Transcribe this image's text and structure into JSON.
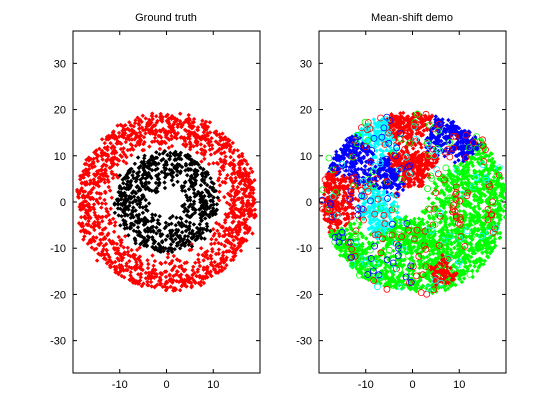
{
  "chart_data": [
    {
      "type": "scatter",
      "title": "Ground truth",
      "xlabel": "",
      "ylabel": "",
      "xlim": [
        -20,
        20
      ],
      "ylim": [
        -37,
        37
      ],
      "xticks": [
        -10,
        0,
        10
      ],
      "yticks": [
        -30,
        -20,
        -10,
        0,
        10,
        20,
        30
      ],
      "grid": false,
      "legend": "none",
      "series": [
        {
          "shape": "ring",
          "center": [
            0,
            0
          ],
          "radius_range": [
            11,
            19
          ],
          "count": 1400,
          "marker": "diamond",
          "color": "#ff0000"
        },
        {
          "shape": "ring",
          "center": [
            0,
            0
          ],
          "radius_range": [
            3,
            11
          ],
          "count": 700,
          "marker": "diamond",
          "color": "#000000"
        }
      ]
    },
    {
      "type": "scatter",
      "title": "Mean-shift demo",
      "xlabel": "",
      "ylabel": "",
      "xlim": [
        -20,
        20
      ],
      "ylim": [
        -37,
        37
      ],
      "xticks": [
        -10,
        0,
        10
      ],
      "yticks": [
        -30,
        -20,
        -10,
        0,
        10,
        20,
        30
      ],
      "grid": false,
      "legend": "none",
      "series": [
        {
          "shape": "sector",
          "angle_range": [
            -80,
            40
          ],
          "radius_range": [
            3,
            20
          ],
          "count": 1100,
          "marker": "diamond",
          "color": "#00ff00"
        },
        {
          "shape": "sector",
          "angle_range": [
            40,
            78
          ],
          "radius_range": [
            11,
            19
          ],
          "count": 260,
          "marker": "diamond",
          "color": "#0000ff"
        },
        {
          "shape": "sector",
          "angle_range": [
            78,
            108
          ],
          "radius_range": [
            11,
            19
          ],
          "count": 220,
          "marker": "diamond",
          "color": "#ff0000"
        },
        {
          "shape": "sector",
          "angle_range": [
            108,
            130
          ],
          "radius_range": [
            11,
            19
          ],
          "count": 180,
          "marker": "diamond",
          "color": "#00ffff"
        },
        {
          "shape": "sector",
          "angle_range": [
            130,
            160
          ],
          "radius_range": [
            11,
            19
          ],
          "count": 200,
          "marker": "diamond",
          "color": "#0000ff"
        },
        {
          "shape": "sector",
          "angle_range": [
            160,
            200
          ],
          "radius_range": [
            11,
            19
          ],
          "count": 260,
          "marker": "diamond",
          "color": "#ff0000"
        },
        {
          "shape": "sector",
          "angle_range": [
            200,
            280
          ],
          "radius_range": [
            11,
            19
          ],
          "count": 450,
          "marker": "diamond",
          "color": "#00ff00"
        },
        {
          "shape": "sector",
          "angle_range": [
            60,
            120
          ],
          "radius_range": [
            3,
            11
          ],
          "count": 300,
          "marker": "diamond",
          "color": "#ff0000"
        },
        {
          "shape": "sector",
          "angle_range": [
            120,
            160
          ],
          "radius_range": [
            3,
            11
          ],
          "count": 150,
          "marker": "diamond",
          "color": "#0000ff"
        },
        {
          "shape": "sector",
          "angle_range": [
            160,
            230
          ],
          "radius_range": [
            3,
            11
          ],
          "count": 220,
          "marker": "diamond",
          "color": "#00ffff"
        },
        {
          "shape": "sector",
          "angle_range": [
            230,
            300
          ],
          "radius_range": [
            3,
            11
          ],
          "count": 220,
          "marker": "diamond",
          "color": "#00ff00"
        },
        {
          "shape": "sector",
          "angle_range": [
            285,
            300
          ],
          "radius_range": [
            13,
            19
          ],
          "count": 70,
          "marker": "diamond",
          "color": "#ff0000"
        },
        {
          "shape": "sector",
          "angle_range": [
            0,
            360
          ],
          "radius_range": [
            2,
            20
          ],
          "count": 140,
          "marker": "circle",
          "color": "#ff0000"
        },
        {
          "shape": "sector",
          "angle_range": [
            0,
            360
          ],
          "radius_range": [
            2,
            20
          ],
          "count": 70,
          "marker": "circle",
          "color": "#00ff00"
        },
        {
          "shape": "sector",
          "angle_range": [
            90,
            270
          ],
          "radius_range": [
            2,
            20
          ],
          "count": 60,
          "marker": "circle",
          "color": "#0000ff"
        },
        {
          "shape": "sector",
          "angle_range": [
            0,
            360
          ],
          "radius_range": [
            2,
            20
          ],
          "count": 60,
          "marker": "circle",
          "color": "#00ffff"
        }
      ]
    }
  ]
}
